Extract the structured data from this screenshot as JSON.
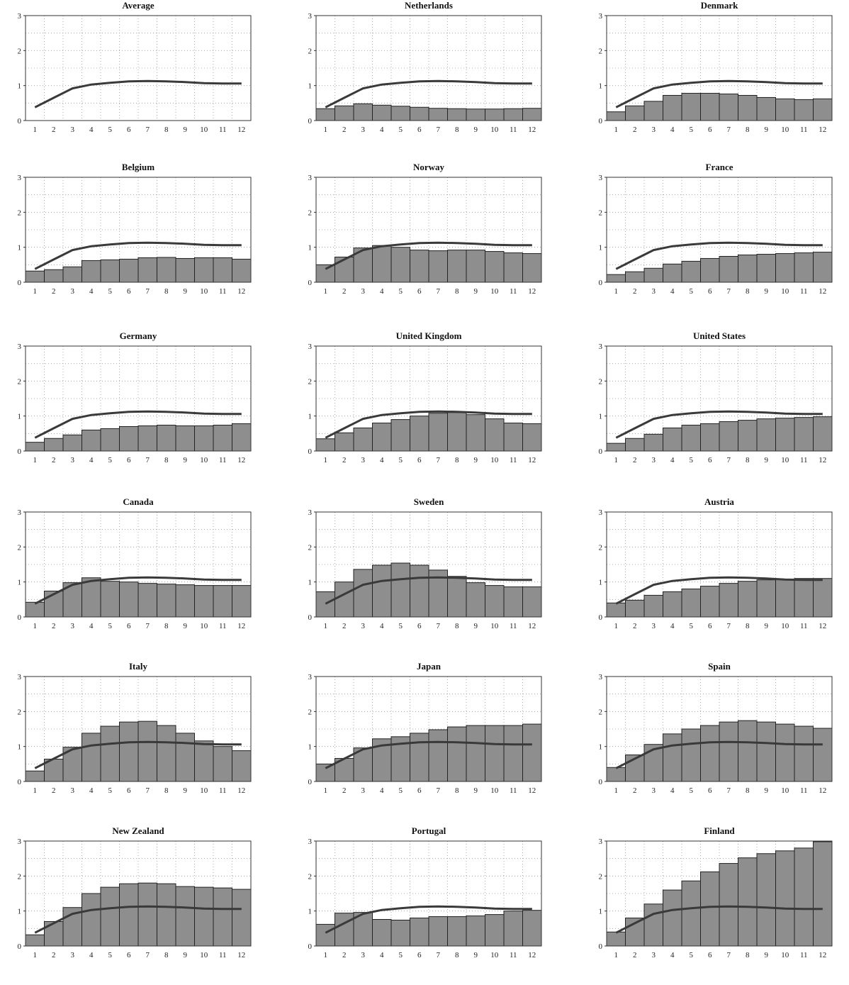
{
  "chart_data": [
    {
      "type": "bar",
      "title": "Average",
      "categories": [
        "1",
        "2",
        "3",
        "4",
        "5",
        "6",
        "7",
        "8",
        "9",
        "10",
        "11",
        "12"
      ],
      "ylim": [
        0,
        3
      ],
      "yticks": [
        "0",
        "1",
        "2",
        "3"
      ],
      "series": [
        {
          "type": "line",
          "values": [
            0.38,
            0.65,
            0.92,
            1.03,
            1.08,
            1.12,
            1.13,
            1.12,
            1.1,
            1.07,
            1.06,
            1.06
          ]
        }
      ],
      "grid": true
    },
    {
      "type": "bar",
      "title": "Netherlands",
      "categories": [
        "1",
        "2",
        "3",
        "4",
        "5",
        "6",
        "7",
        "8",
        "9",
        "10",
        "11",
        "12"
      ],
      "ylim": [
        0,
        3
      ],
      "yticks": [
        "0",
        "1",
        "2",
        "3"
      ],
      "series": [
        {
          "type": "bar",
          "values": [
            0.34,
            0.42,
            0.48,
            0.44,
            0.41,
            0.38,
            0.35,
            0.34,
            0.33,
            0.33,
            0.34,
            0.35
          ]
        },
        {
          "type": "line",
          "values": [
            0.38,
            0.65,
            0.92,
            1.03,
            1.08,
            1.12,
            1.13,
            1.12,
            1.1,
            1.07,
            1.06,
            1.06
          ]
        }
      ],
      "grid": true
    },
    {
      "type": "bar",
      "title": "Denmark",
      "categories": [
        "1",
        "2",
        "3",
        "4",
        "5",
        "6",
        "7",
        "8",
        "9",
        "10",
        "11",
        "12"
      ],
      "ylim": [
        0,
        3
      ],
      "yticks": [
        "0",
        "1",
        "2",
        "3"
      ],
      "series": [
        {
          "type": "bar",
          "values": [
            0.25,
            0.42,
            0.55,
            0.72,
            0.78,
            0.78,
            0.76,
            0.72,
            0.66,
            0.62,
            0.6,
            0.62
          ]
        },
        {
          "type": "line",
          "values": [
            0.38,
            0.65,
            0.92,
            1.03,
            1.08,
            1.12,
            1.13,
            1.12,
            1.1,
            1.07,
            1.06,
            1.06
          ]
        }
      ],
      "grid": true
    },
    {
      "type": "bar",
      "title": "Belgium",
      "categories": [
        "1",
        "2",
        "3",
        "4",
        "5",
        "6",
        "7",
        "8",
        "9",
        "10",
        "11",
        "12"
      ],
      "ylim": [
        0,
        3
      ],
      "yticks": [
        "0",
        "1",
        "2",
        "3"
      ],
      "series": [
        {
          "type": "bar",
          "values": [
            0.32,
            0.36,
            0.44,
            0.62,
            0.64,
            0.66,
            0.7,
            0.71,
            0.68,
            0.7,
            0.7,
            0.66
          ]
        },
        {
          "type": "line",
          "values": [
            0.38,
            0.65,
            0.92,
            1.03,
            1.08,
            1.12,
            1.13,
            1.12,
            1.1,
            1.07,
            1.06,
            1.06
          ]
        }
      ],
      "grid": true
    },
    {
      "type": "bar",
      "title": "Norway",
      "categories": [
        "1",
        "2",
        "3",
        "4",
        "5",
        "6",
        "7",
        "8",
        "9",
        "10",
        "11",
        "12"
      ],
      "ylim": [
        0,
        3
      ],
      "yticks": [
        "0",
        "1",
        "2",
        "3"
      ],
      "series": [
        {
          "type": "bar",
          "values": [
            0.5,
            0.72,
            0.98,
            1.05,
            1.0,
            0.92,
            0.9,
            0.92,
            0.92,
            0.88,
            0.84,
            0.82
          ]
        },
        {
          "type": "line",
          "values": [
            0.38,
            0.65,
            0.92,
            1.03,
            1.08,
            1.12,
            1.13,
            1.12,
            1.1,
            1.07,
            1.06,
            1.06
          ]
        }
      ],
      "grid": true
    },
    {
      "type": "bar",
      "title": "France",
      "categories": [
        "1",
        "2",
        "3",
        "4",
        "5",
        "6",
        "7",
        "8",
        "9",
        "10",
        "11",
        "12"
      ],
      "ylim": [
        0,
        3
      ],
      "yticks": [
        "0",
        "1",
        "2",
        "3"
      ],
      "series": [
        {
          "type": "bar",
          "values": [
            0.22,
            0.3,
            0.4,
            0.52,
            0.6,
            0.68,
            0.74,
            0.78,
            0.8,
            0.82,
            0.84,
            0.86
          ]
        },
        {
          "type": "line",
          "values": [
            0.38,
            0.65,
            0.92,
            1.03,
            1.08,
            1.12,
            1.13,
            1.12,
            1.1,
            1.07,
            1.06,
            1.06
          ]
        }
      ],
      "grid": true
    },
    {
      "type": "bar",
      "title": "Germany",
      "categories": [
        "1",
        "2",
        "3",
        "4",
        "5",
        "6",
        "7",
        "8",
        "9",
        "10",
        "11",
        "12"
      ],
      "ylim": [
        0,
        3
      ],
      "yticks": [
        "0",
        "1",
        "2",
        "3"
      ],
      "series": [
        {
          "type": "bar",
          "values": [
            0.25,
            0.36,
            0.46,
            0.6,
            0.64,
            0.7,
            0.72,
            0.74,
            0.72,
            0.72,
            0.74,
            0.78
          ]
        },
        {
          "type": "line",
          "values": [
            0.38,
            0.65,
            0.92,
            1.03,
            1.08,
            1.12,
            1.13,
            1.12,
            1.1,
            1.07,
            1.06,
            1.06
          ]
        }
      ],
      "grid": true
    },
    {
      "type": "bar",
      "title": "United Kingdom",
      "categories": [
        "1",
        "2",
        "3",
        "4",
        "5",
        "6",
        "7",
        "8",
        "9",
        "10",
        "11",
        "12"
      ],
      "ylim": [
        0,
        3
      ],
      "yticks": [
        "0",
        "1",
        "2",
        "3"
      ],
      "series": [
        {
          "type": "bar",
          "values": [
            0.35,
            0.52,
            0.66,
            0.8,
            0.9,
            1.0,
            1.08,
            1.1,
            1.04,
            0.92,
            0.8,
            0.78
          ]
        },
        {
          "type": "line",
          "values": [
            0.38,
            0.65,
            0.92,
            1.03,
            1.08,
            1.12,
            1.13,
            1.12,
            1.1,
            1.07,
            1.06,
            1.06
          ]
        }
      ],
      "grid": true
    },
    {
      "type": "bar",
      "title": "United States",
      "categories": [
        "1",
        "2",
        "3",
        "4",
        "5",
        "6",
        "7",
        "8",
        "9",
        "10",
        "11",
        "12"
      ],
      "ylim": [
        0,
        3
      ],
      "yticks": [
        "0",
        "1",
        "2",
        "3"
      ],
      "series": [
        {
          "type": "bar",
          "values": [
            0.22,
            0.36,
            0.48,
            0.66,
            0.74,
            0.78,
            0.84,
            0.88,
            0.92,
            0.94,
            0.96,
            0.98
          ]
        },
        {
          "type": "line",
          "values": [
            0.38,
            0.65,
            0.92,
            1.03,
            1.08,
            1.12,
            1.13,
            1.12,
            1.1,
            1.07,
            1.06,
            1.06
          ]
        }
      ],
      "grid": true
    },
    {
      "type": "bar",
      "title": "Canada",
      "categories": [
        "1",
        "2",
        "3",
        "4",
        "5",
        "6",
        "7",
        "8",
        "9",
        "10",
        "11",
        "12"
      ],
      "ylim": [
        0,
        3
      ],
      "yticks": [
        "0",
        "1",
        "2",
        "3"
      ],
      "series": [
        {
          "type": "bar",
          "values": [
            0.42,
            0.74,
            0.98,
            1.12,
            1.02,
            1.0,
            0.96,
            0.94,
            0.92,
            0.9,
            0.9,
            0.9
          ]
        },
        {
          "type": "line",
          "values": [
            0.38,
            0.65,
            0.92,
            1.03,
            1.08,
            1.12,
            1.13,
            1.12,
            1.1,
            1.07,
            1.06,
            1.06
          ]
        }
      ],
      "grid": true
    },
    {
      "type": "bar",
      "title": "Sweden",
      "categories": [
        "1",
        "2",
        "3",
        "4",
        "5",
        "6",
        "7",
        "8",
        "9",
        "10",
        "11",
        "12"
      ],
      "ylim": [
        0,
        3
      ],
      "yticks": [
        "0",
        "1",
        "2",
        "3"
      ],
      "series": [
        {
          "type": "bar",
          "values": [
            0.72,
            1.0,
            1.36,
            1.48,
            1.54,
            1.48,
            1.34,
            1.16,
            0.98,
            0.9,
            0.86,
            0.86
          ]
        },
        {
          "type": "line",
          "values": [
            0.38,
            0.65,
            0.92,
            1.03,
            1.08,
            1.12,
            1.13,
            1.12,
            1.1,
            1.07,
            1.06,
            1.06
          ]
        }
      ],
      "grid": true
    },
    {
      "type": "bar",
      "title": "Austria",
      "categories": [
        "1",
        "2",
        "3",
        "4",
        "5",
        "6",
        "7",
        "8",
        "9",
        "10",
        "11",
        "12"
      ],
      "ylim": [
        0,
        3
      ],
      "yticks": [
        "0",
        "1",
        "2",
        "3"
      ],
      "series": [
        {
          "type": "bar",
          "values": [
            0.4,
            0.48,
            0.62,
            0.72,
            0.8,
            0.88,
            0.96,
            1.02,
            1.06,
            1.08,
            1.1,
            1.1
          ]
        },
        {
          "type": "line",
          "values": [
            0.38,
            0.65,
            0.92,
            1.03,
            1.08,
            1.12,
            1.13,
            1.12,
            1.1,
            1.07,
            1.06,
            1.06
          ]
        }
      ],
      "grid": true
    },
    {
      "type": "bar",
      "title": "Italy",
      "categories": [
        "1",
        "2",
        "3",
        "4",
        "5",
        "6",
        "7",
        "8",
        "9",
        "10",
        "11",
        "12"
      ],
      "ylim": [
        0,
        3
      ],
      "yticks": [
        "0",
        "1",
        "2",
        "3"
      ],
      "series": [
        {
          "type": "bar",
          "values": [
            0.3,
            0.64,
            0.98,
            1.38,
            1.58,
            1.7,
            1.72,
            1.6,
            1.38,
            1.16,
            1.0,
            0.88
          ]
        },
        {
          "type": "line",
          "values": [
            0.38,
            0.65,
            0.92,
            1.03,
            1.08,
            1.12,
            1.13,
            1.12,
            1.1,
            1.07,
            1.06,
            1.06
          ]
        }
      ],
      "grid": true
    },
    {
      "type": "bar",
      "title": "Japan",
      "categories": [
        "1",
        "2",
        "3",
        "4",
        "5",
        "6",
        "7",
        "8",
        "9",
        "10",
        "11",
        "12"
      ],
      "ylim": [
        0,
        3
      ],
      "yticks": [
        "0",
        "1",
        "2",
        "3"
      ],
      "series": [
        {
          "type": "bar",
          "values": [
            0.5,
            0.66,
            0.96,
            1.22,
            1.28,
            1.38,
            1.48,
            1.56,
            1.6,
            1.6,
            1.6,
            1.64
          ]
        },
        {
          "type": "line",
          "values": [
            0.38,
            0.65,
            0.92,
            1.03,
            1.08,
            1.12,
            1.13,
            1.12,
            1.1,
            1.07,
            1.06,
            1.06
          ]
        }
      ],
      "grid": true
    },
    {
      "type": "bar",
      "title": "Spain",
      "categories": [
        "1",
        "2",
        "3",
        "4",
        "5",
        "6",
        "7",
        "8",
        "9",
        "10",
        "11",
        "12"
      ],
      "ylim": [
        0,
        3
      ],
      "yticks": [
        "0",
        "1",
        "2",
        "3"
      ],
      "series": [
        {
          "type": "bar",
          "values": [
            0.4,
            0.76,
            1.06,
            1.36,
            1.5,
            1.6,
            1.7,
            1.74,
            1.7,
            1.64,
            1.58,
            1.52
          ]
        },
        {
          "type": "line",
          "values": [
            0.38,
            0.65,
            0.92,
            1.03,
            1.08,
            1.12,
            1.13,
            1.12,
            1.1,
            1.07,
            1.06,
            1.06
          ]
        }
      ],
      "grid": true
    },
    {
      "type": "bar",
      "title": "New Zealand",
      "categories": [
        "1",
        "2",
        "3",
        "4",
        "5",
        "6",
        "7",
        "8",
        "9",
        "10",
        "11",
        "12"
      ],
      "ylim": [
        0,
        3
      ],
      "yticks": [
        "0",
        "1",
        "2",
        "3"
      ],
      "series": [
        {
          "type": "bar",
          "values": [
            0.32,
            0.7,
            1.1,
            1.5,
            1.68,
            1.78,
            1.8,
            1.78,
            1.7,
            1.68,
            1.66,
            1.62
          ]
        },
        {
          "type": "line",
          "values": [
            0.38,
            0.65,
            0.92,
            1.03,
            1.08,
            1.12,
            1.13,
            1.12,
            1.1,
            1.07,
            1.06,
            1.06
          ]
        }
      ],
      "grid": true
    },
    {
      "type": "bar",
      "title": "Portugal",
      "categories": [
        "1",
        "2",
        "3",
        "4",
        "5",
        "6",
        "7",
        "8",
        "9",
        "10",
        "11",
        "12"
      ],
      "ylim": [
        0,
        3
      ],
      "yticks": [
        "0",
        "1",
        "2",
        "3"
      ],
      "series": [
        {
          "type": "bar",
          "values": [
            0.62,
            0.94,
            0.96,
            0.76,
            0.74,
            0.8,
            0.84,
            0.84,
            0.86,
            0.9,
            1.0,
            1.02
          ]
        },
        {
          "type": "line",
          "values": [
            0.38,
            0.65,
            0.92,
            1.03,
            1.08,
            1.12,
            1.13,
            1.12,
            1.1,
            1.07,
            1.06,
            1.06
          ]
        }
      ],
      "grid": true
    },
    {
      "type": "bar",
      "title": "Finland",
      "categories": [
        "1",
        "2",
        "3",
        "4",
        "5",
        "6",
        "7",
        "8",
        "9",
        "10",
        "11",
        "12"
      ],
      "ylim": [
        0,
        3
      ],
      "yticks": [
        "0",
        "1",
        "2",
        "3"
      ],
      "series": [
        {
          "type": "bar",
          "values": [
            0.4,
            0.8,
            1.2,
            1.6,
            1.86,
            2.12,
            2.36,
            2.52,
            2.64,
            2.72,
            2.8,
            2.98
          ]
        },
        {
          "type": "line",
          "values": [
            0.38,
            0.65,
            0.92,
            1.03,
            1.08,
            1.12,
            1.13,
            1.12,
            1.1,
            1.07,
            1.06,
            1.06
          ]
        }
      ],
      "grid": true
    }
  ],
  "colors": {
    "bar_fill": "#8e8e8e",
    "bar_stroke": "#222222",
    "line": "#3a3a3a",
    "axis": "#333333",
    "grid": "#9a9a9a"
  }
}
